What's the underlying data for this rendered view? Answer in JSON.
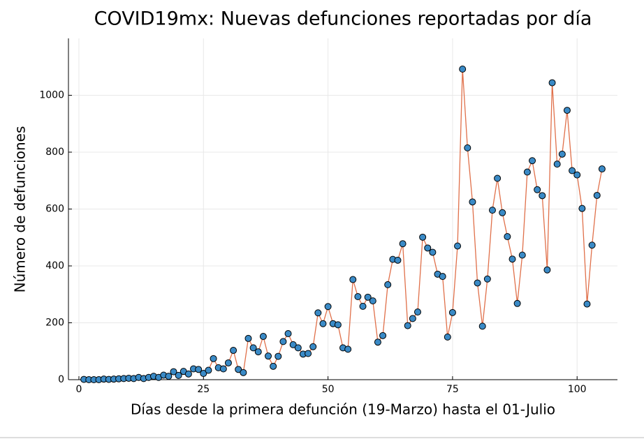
{
  "chart_data": {
    "type": "line",
    "title": "COVID19mx: Nuevas defunciones reportadas por día",
    "xlabel": "Días desde la primera defunción (19-Marzo) hasta el 01-Julio",
    "ylabel": "Número de defunciones",
    "x": [
      1,
      2,
      3,
      4,
      5,
      6,
      7,
      8,
      9,
      10,
      11,
      12,
      13,
      14,
      15,
      16,
      17,
      18,
      19,
      20,
      21,
      22,
      23,
      24,
      25,
      26,
      27,
      28,
      29,
      30,
      31,
      32,
      33,
      34,
      35,
      36,
      37,
      38,
      39,
      40,
      41,
      42,
      43,
      44,
      45,
      46,
      47,
      48,
      49,
      50,
      51,
      52,
      53,
      54,
      55,
      56,
      57,
      58,
      59,
      60,
      61,
      62,
      63,
      64,
      65,
      66,
      67,
      68,
      69,
      70,
      71,
      72,
      73,
      74,
      75,
      76,
      77,
      78,
      79,
      80,
      81,
      82,
      83,
      84,
      85,
      86,
      87,
      88,
      89,
      90,
      91,
      92,
      93,
      94,
      95,
      96,
      97,
      98,
      99,
      100,
      101,
      102,
      103,
      104,
      105
    ],
    "values": [
      1,
      0,
      0,
      0,
      2,
      1,
      2,
      3,
      4,
      5,
      4,
      8,
      4,
      8,
      12,
      8,
      16,
      12,
      28,
      15,
      29,
      20,
      38,
      36,
      22,
      33,
      74,
      42,
      38,
      59,
      103,
      36,
      25,
      145,
      112,
      98,
      152,
      83,
      47,
      82,
      134,
      162,
      123,
      112,
      90,
      92,
      116,
      235,
      197,
      257,
      197,
      193,
      112,
      107,
      352,
      292,
      258,
      290,
      277,
      132,
      155,
      334,
      423,
      420,
      478,
      190,
      215,
      238,
      501,
      463,
      448,
      371,
      363,
      150,
      236,
      470,
      1092,
      815,
      625,
      340,
      188,
      354,
      596,
      708,
      587,
      503,
      424,
      268,
      438,
      730,
      770,
      668,
      647,
      386,
      1044,
      758,
      793,
      947,
      735,
      720,
      602,
      266,
      473,
      648,
      741
    ],
    "color": "#e0704a",
    "marker_color": "#3a8ac6",
    "xlim": [
      -2.1,
      108.1
    ],
    "ylim": [
      0,
      1200
    ],
    "xticks": [
      0,
      25,
      50,
      75,
      100
    ],
    "yticks": [
      0,
      200,
      400,
      600,
      800,
      1000
    ],
    "grid": true
  }
}
